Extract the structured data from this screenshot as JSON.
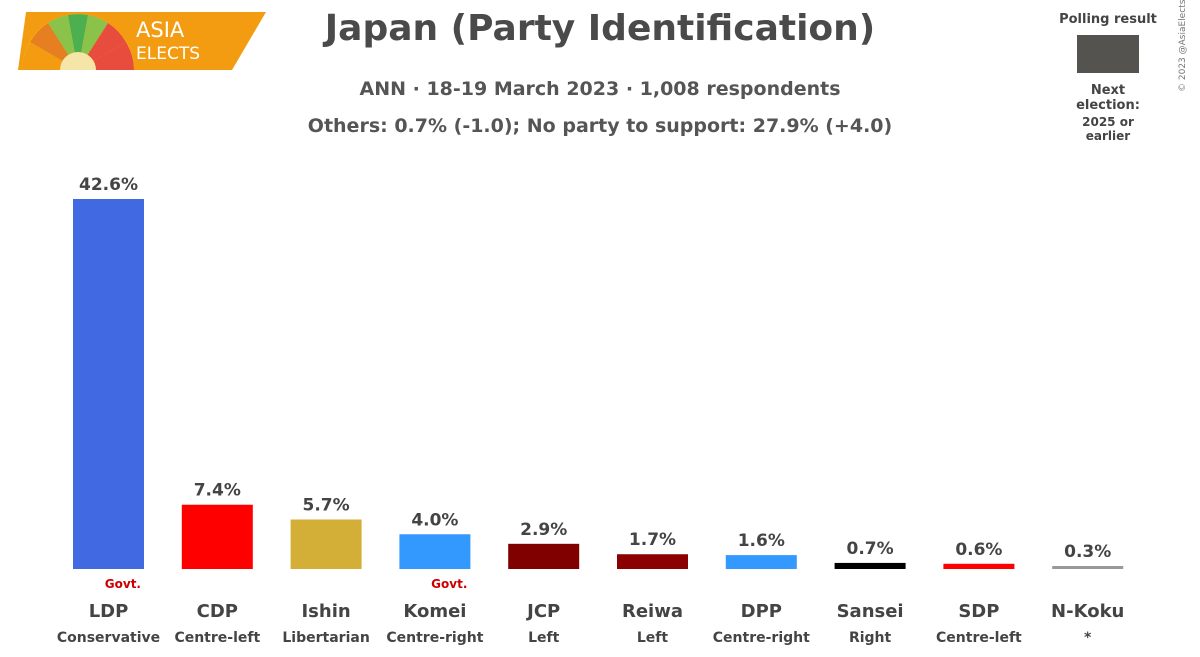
{
  "logo": {
    "line1": "ASIA",
    "line2": "ELECTS"
  },
  "title": "Japan (Party Identification)",
  "subtitle": "ANN · 18-19 March 2023 · 1,008 respondents",
  "note": "Others: 0.7% (-1.0); No party to support: 27.9% (+4.0)",
  "legend": {
    "label": "Polling result",
    "next_election_label": "Next election:",
    "next_election_value": "2025 or earlier",
    "swatch_color": "#555350"
  },
  "copyright": "© 2023 @AsiaElects",
  "chart_data": {
    "type": "bar",
    "categories": [
      "LDP",
      "CDP",
      "Ishin",
      "Komei",
      "JCP",
      "Reiwa",
      "DPP",
      "Sansei",
      "SDP",
      "N-Koku"
    ],
    "ideologies": [
      "Conservative",
      "Centre-left",
      "Libertarian",
      "Centre-right",
      "Left",
      "Left",
      "Centre-right",
      "Right",
      "Centre-left",
      "*"
    ],
    "values": [
      42.6,
      7.4,
      5.7,
      4.0,
      2.9,
      1.7,
      1.6,
      0.7,
      0.6,
      0.3
    ],
    "value_labels": [
      "42.6%",
      "7.4%",
      "5.7%",
      "4.0%",
      "2.9%",
      "1.7%",
      "1.6%",
      "0.7%",
      "0.6%",
      "0.3%"
    ],
    "colors": [
      "#4169E1",
      "#FF0000",
      "#D4AF37",
      "#3399FF",
      "#800000",
      "#8B0000",
      "#3399FF",
      "#000000",
      "#FF0000",
      "#999999"
    ],
    "govt": [
      true,
      false,
      false,
      true,
      false,
      false,
      false,
      false,
      false,
      false
    ],
    "govt_label": "Govt.",
    "govt_color": "#CC0000"
  }
}
